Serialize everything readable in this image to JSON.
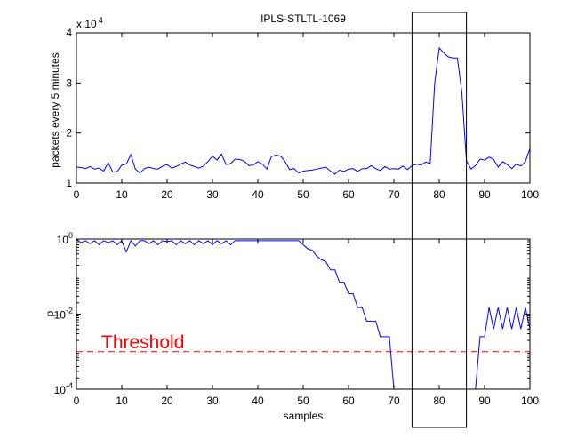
{
  "chart_data": [
    {
      "type": "line",
      "title": "IPLS-STLTL-1069",
      "xlabel": "",
      "ylabel": "packets every 5 minutes",
      "xlim": [
        0,
        100
      ],
      "ylim": [
        10000,
        40000
      ],
      "x_ticks": [
        "0",
        "10",
        "20",
        "30",
        "40",
        "50",
        "60",
        "70",
        "80",
        "90",
        "100"
      ],
      "y_ticks": [
        "1",
        "2",
        "3",
        "4"
      ],
      "y_exponent_base": "x 10",
      "y_exponent_power": "4",
      "line_color": "#0000ff",
      "x": [
        0,
        1,
        2,
        3,
        4,
        5,
        6,
        7,
        8,
        9,
        10,
        11,
        12,
        13,
        14,
        15,
        16,
        17,
        18,
        19,
        20,
        21,
        22,
        23,
        24,
        25,
        26,
        27,
        28,
        29,
        30,
        31,
        32,
        33,
        34,
        35,
        36,
        37,
        38,
        39,
        40,
        41,
        42,
        43,
        44,
        45,
        46,
        47,
        48,
        49,
        50,
        51,
        52,
        53,
        54,
        55,
        56,
        57,
        58,
        59,
        60,
        61,
        62,
        63,
        64,
        65,
        66,
        67,
        68,
        69,
        70,
        71,
        72,
        73,
        74,
        75,
        76,
        77,
        78,
        79,
        80,
        81,
        82,
        83,
        84,
        85,
        86,
        87,
        88,
        89,
        90,
        91,
        92,
        93,
        94,
        95,
        96,
        97,
        98,
        99,
        100
      ],
      "y": [
        13200,
        13100,
        12900,
        13300,
        12800,
        13000,
        12400,
        14100,
        12200,
        12300,
        13600,
        13800,
        15700,
        12800,
        12000,
        12900,
        13200,
        12900,
        12800,
        13400,
        13700,
        13000,
        13300,
        13800,
        14200,
        13600,
        13300,
        13000,
        13400,
        14300,
        15400,
        14600,
        15800,
        13700,
        13900,
        14800,
        14700,
        14400,
        13500,
        13600,
        14300,
        13800,
        12800,
        15300,
        15600,
        15400,
        14300,
        12700,
        12900,
        12000,
        12400,
        12500,
        12600,
        12800,
        13000,
        13200,
        12400,
        11800,
        12600,
        12300,
        12800,
        12900,
        12300,
        12900,
        12900,
        13500,
        12900,
        12500,
        13300,
        12800,
        12900,
        12800,
        13400,
        12700,
        13500,
        13800,
        13600,
        14200,
        13900,
        30000,
        37000,
        36000,
        35200,
        35000,
        35000,
        28000,
        14500,
        12800,
        13500,
        14800,
        14600,
        15200,
        14700,
        13200,
        14300,
        13700,
        12900,
        13800,
        13400,
        14300,
        16900
      ]
    },
    {
      "type": "line",
      "title": "",
      "xlabel": "samples",
      "ylabel": "p",
      "y_scale": "log",
      "xlim": [
        0,
        100
      ],
      "ylim": [
        0.0001,
        1
      ],
      "x_ticks": [
        "0",
        "10",
        "20",
        "30",
        "40",
        "50",
        "60",
        "70",
        "80",
        "90",
        "100"
      ],
      "y_ticks": [
        {
          "base": "10",
          "exp": "0",
          "value": 1
        },
        {
          "base": "10",
          "exp": "-2",
          "value": 0.01
        },
        {
          "base": "10",
          "exp": "-4",
          "value": 0.0001
        }
      ],
      "line_color": "#0000ff",
      "threshold": {
        "label": "Threshold",
        "value": 0.001,
        "color": "#ff0000"
      },
      "x": [
        0,
        1,
        2,
        3,
        4,
        5,
        6,
        7,
        8,
        9,
        10,
        11,
        12,
        13,
        14,
        15,
        16,
        17,
        18,
        19,
        20,
        21,
        22,
        23,
        24,
        25,
        26,
        27,
        28,
        29,
        30,
        31,
        32,
        33,
        34,
        35,
        36,
        37,
        38,
        39,
        40,
        41,
        42,
        43,
        44,
        45,
        46,
        47,
        48,
        49,
        50,
        51,
        52,
        53,
        54,
        55,
        56,
        57,
        58,
        59,
        60,
        61,
        62,
        63,
        64,
        65,
        66,
        67,
        68,
        69,
        70,
        71,
        72,
        73,
        74,
        75,
        76,
        77,
        78,
        79,
        80,
        81,
        82,
        83,
        84,
        85,
        86,
        87,
        88,
        89,
        90,
        91,
        92,
        93,
        94,
        95,
        96,
        97,
        98,
        99,
        100
      ],
      "y": [
        1,
        0.8,
        0.9,
        0.75,
        0.9,
        0.7,
        0.9,
        0.8,
        0.9,
        0.7,
        0.9,
        0.45,
        0.9,
        0.65,
        0.9,
        0.9,
        0.75,
        0.9,
        0.7,
        0.9,
        0.85,
        0.9,
        0.7,
        0.9,
        0.75,
        0.9,
        0.7,
        0.9,
        0.75,
        0.9,
        0.7,
        0.9,
        0.75,
        0.9,
        0.7,
        0.9,
        0.9,
        0.9,
        0.9,
        0.9,
        0.9,
        0.9,
        0.9,
        0.9,
        0.9,
        0.9,
        0.9,
        0.9,
        0.9,
        0.9,
        0.7,
        0.55,
        0.5,
        0.35,
        0.28,
        0.25,
        0.15,
        0.15,
        0.07,
        0.07,
        0.035,
        0.035,
        0.015,
        0.015,
        0.0065,
        0.0065,
        0.0065,
        0.0025,
        0.0025,
        0.0025,
        0.0001,
        0.0001,
        0.0001,
        0.0001,
        0.0001,
        0.0001,
        0.0001,
        0.0001,
        0.0001,
        0.0001,
        0.0001,
        0.0001,
        0.0001,
        0.0001,
        0.0001,
        0.0001,
        0.0001,
        0.0001,
        0.0001,
        0.0025,
        0.0025,
        0.015,
        0.004,
        0.015,
        0.004,
        0.015,
        0.004,
        0.015,
        0.004,
        0.015,
        0.004
      ]
    }
  ],
  "highlight_box": {
    "x_start": 74,
    "x_end": 86,
    "color": "#000000"
  }
}
